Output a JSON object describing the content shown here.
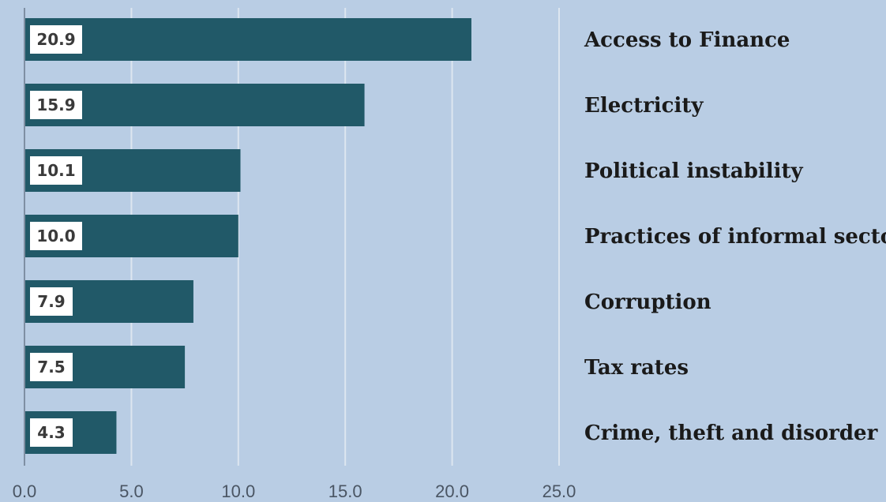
{
  "chart_data": {
    "type": "bar",
    "orientation": "horizontal",
    "categories": [
      "Access to Finance",
      "Electricity",
      "Political instability",
      "Practices of informal sector",
      "Corruption",
      "Tax rates",
      "Crime, theft and disorder"
    ],
    "values": [
      20.9,
      15.9,
      10.1,
      10.0,
      7.9,
      7.5,
      4.3
    ],
    "value_labels": [
      "20.9",
      "15.9",
      "10.1",
      "10.0",
      "7.9",
      "7.5",
      "4.3"
    ],
    "xlim": [
      0,
      25
    ],
    "x_ticks": [
      0,
      5,
      10,
      15,
      20,
      25
    ],
    "x_tick_labels": [
      "0.0",
      "5.0",
      "10.0",
      "15.0",
      "20.0",
      "25.0"
    ],
    "grid": true,
    "category_label_position": "right",
    "colors": {
      "background": "#b9cde4",
      "bar": "#215968",
      "label_box": "#ffffff",
      "gridline": "#dde6f0"
    }
  }
}
